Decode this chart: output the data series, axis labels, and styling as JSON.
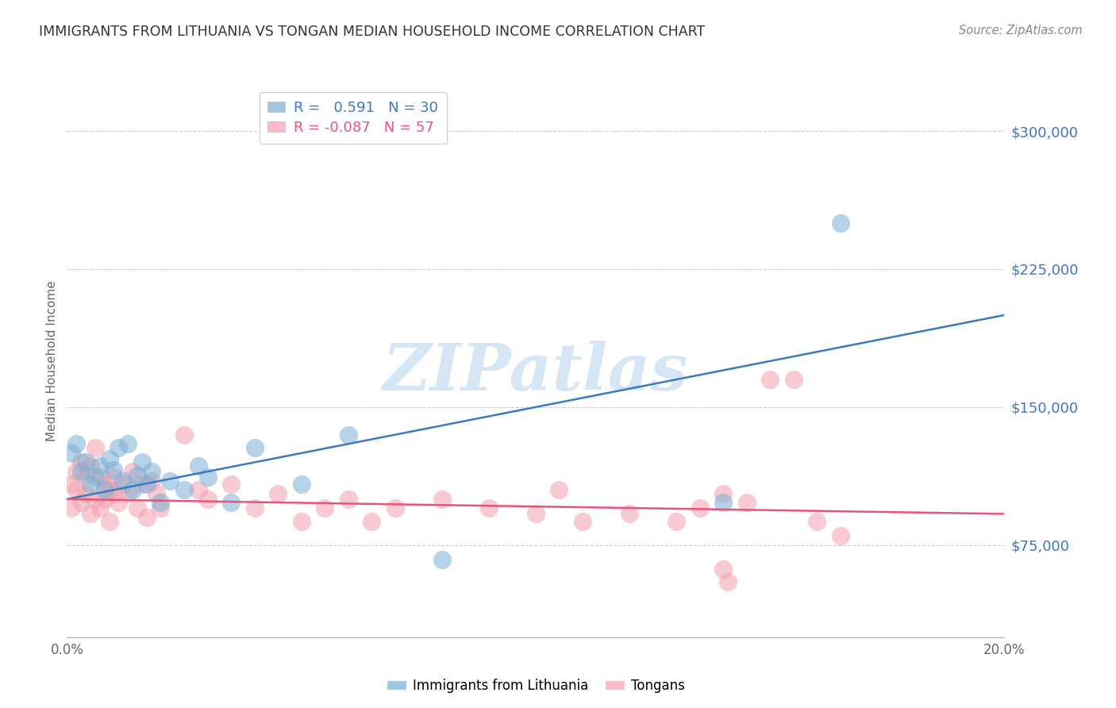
{
  "title": "IMMIGRANTS FROM LITHUANIA VS TONGAN MEDIAN HOUSEHOLD INCOME CORRELATION CHART",
  "source": "Source: ZipAtlas.com",
  "ylabel": "Median Household Income",
  "xlim": [
    0.0,
    0.2
  ],
  "ylim": [
    25000,
    325000
  ],
  "yticks": [
    75000,
    150000,
    225000,
    300000
  ],
  "ytick_labels": [
    "$75,000",
    "$150,000",
    "$225,000",
    "$300,000"
  ],
  "xticks": [
    0.0,
    0.04,
    0.08,
    0.12,
    0.16,
    0.2
  ],
  "xtick_labels": [
    "0.0%",
    "",
    "",
    "",
    "",
    "20.0%"
  ],
  "legend_r1": "R =   0.591   N = 30",
  "legend_r2": "R = -0.087   N = 57",
  "blue_color": "#7bafd4",
  "pink_color": "#f4a0b0",
  "blue_line_color": "#3a7abf",
  "pink_line_color": "#e8557a",
  "watermark": "ZIPatlas",
  "blue_scatter_x": [
    0.001,
    0.002,
    0.003,
    0.004,
    0.005,
    0.006,
    0.007,
    0.008,
    0.009,
    0.01,
    0.011,
    0.012,
    0.013,
    0.014,
    0.015,
    0.016,
    0.017,
    0.018,
    0.02,
    0.022,
    0.025,
    0.028,
    0.03,
    0.035,
    0.04,
    0.05,
    0.06,
    0.08,
    0.14,
    0.165
  ],
  "blue_scatter_y": [
    125000,
    130000,
    115000,
    120000,
    108000,
    112000,
    118000,
    105000,
    122000,
    116000,
    128000,
    110000,
    130000,
    105000,
    113000,
    120000,
    108000,
    115000,
    98000,
    110000,
    105000,
    118000,
    112000,
    98000,
    128000,
    108000,
    135000,
    67000,
    98000,
    250000
  ],
  "pink_scatter_x": [
    0.001,
    0.001,
    0.002,
    0.002,
    0.003,
    0.003,
    0.004,
    0.004,
    0.005,
    0.005,
    0.006,
    0.006,
    0.007,
    0.007,
    0.008,
    0.008,
    0.009,
    0.009,
    0.01,
    0.01,
    0.011,
    0.012,
    0.013,
    0.014,
    0.015,
    0.016,
    0.017,
    0.018,
    0.019,
    0.02,
    0.025,
    0.028,
    0.03,
    0.035,
    0.04,
    0.045,
    0.05,
    0.055,
    0.06,
    0.065,
    0.07,
    0.08,
    0.09,
    0.1,
    0.105,
    0.11,
    0.12,
    0.13,
    0.135,
    0.14,
    0.145,
    0.15,
    0.155,
    0.16,
    0.165,
    0.14,
    0.141
  ],
  "pink_scatter_y": [
    108000,
    95000,
    115000,
    105000,
    120000,
    98000,
    113000,
    103000,
    118000,
    92000,
    128000,
    100000,
    112000,
    95000,
    108000,
    100000,
    105000,
    88000,
    112000,
    103000,
    98000,
    108000,
    103000,
    115000,
    95000,
    108000,
    90000,
    110000,
    103000,
    95000,
    135000,
    105000,
    100000,
    108000,
    95000,
    103000,
    88000,
    95000,
    100000,
    88000,
    95000,
    100000,
    95000,
    92000,
    105000,
    88000,
    92000,
    88000,
    95000,
    103000,
    98000,
    165000,
    165000,
    88000,
    80000,
    62000,
    55000
  ]
}
